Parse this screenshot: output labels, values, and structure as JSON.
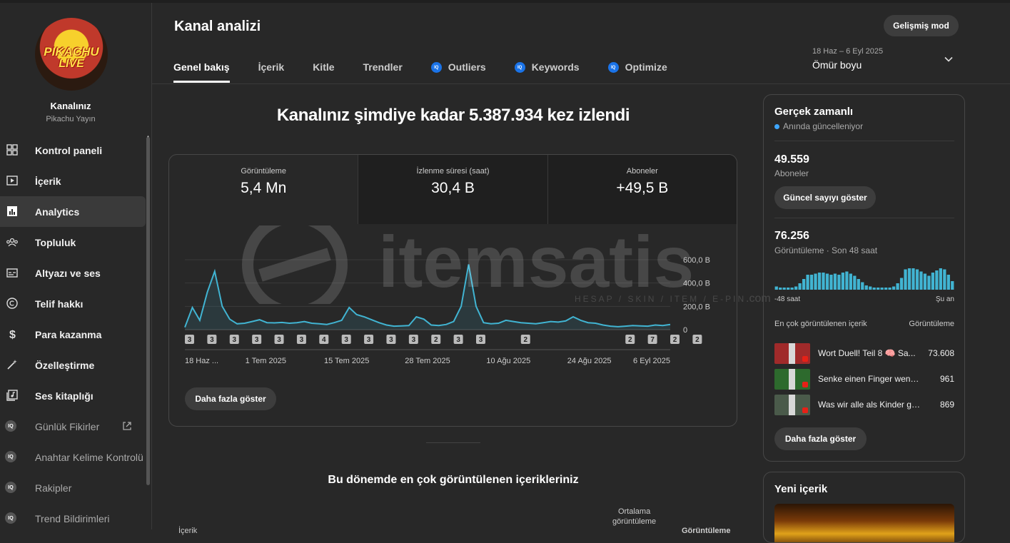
{
  "channel": {
    "title": "Kanalınız",
    "name": "Pikachu Yayın",
    "logo_top": "PIKACHU",
    "logo_bottom": "LIVE"
  },
  "nav": [
    {
      "label": "Kontrol paneli",
      "icon": "dashboard-icon"
    },
    {
      "label": "İçerik",
      "icon": "content-icon"
    },
    {
      "label": "Analytics",
      "icon": "analytics-icon",
      "active": true
    },
    {
      "label": "Topluluk",
      "icon": "community-icon"
    },
    {
      "label": "Altyazı ve ses",
      "icon": "subtitles-icon"
    },
    {
      "label": "Telif hakkı",
      "icon": "copyright-icon"
    },
    {
      "label": "Para kazanma",
      "icon": "dollar-icon"
    },
    {
      "label": "Özelleştirme",
      "icon": "magic-wand-icon"
    },
    {
      "label": "Ses kitaplığı",
      "icon": "audio-library-icon"
    },
    {
      "label": "Günlük Fikirler",
      "icon": "iq-icon",
      "external": true
    },
    {
      "label": "Anahtar Kelime Kontrolü",
      "icon": "iq-icon"
    },
    {
      "label": "Rakipler",
      "icon": "iq-icon"
    },
    {
      "label": "Trend Bildirimleri",
      "icon": "iq-icon"
    }
  ],
  "iq_badge": "IQ",
  "header": {
    "title": "Kanal analizi",
    "advanced_mode": "Gelişmiş mod",
    "date_range": "18 Haz – 6 Eyl 2025",
    "date_value": "Ömür boyu"
  },
  "tabs": [
    {
      "label": "Genel bakış",
      "active": true
    },
    {
      "label": "İçerik"
    },
    {
      "label": "Kitle"
    },
    {
      "label": "Trendler"
    },
    {
      "label": "Outliers",
      "iq": true
    },
    {
      "label": "Keywords",
      "iq": true
    },
    {
      "label": "Optimize",
      "iq": true
    }
  ],
  "main": {
    "headline": "Kanalınız şimdiye kadar 5.387.934 kez izlendi",
    "metrics": [
      {
        "label": "Görüntüleme",
        "value": "5,4 Mn"
      },
      {
        "label": "İzlenme süresi (saat)",
        "value": "30,4 B"
      },
      {
        "label": "Aboneler",
        "value": "+49,5 B"
      }
    ],
    "more_button": "Daha fazla göster",
    "section_title": "Bu dönemde en çok görüntülenen içerikleriniz",
    "table_header_first": "İçerik",
    "table_header_avg_line1": "Ortalama",
    "table_header_avg_line2": "görüntüleme",
    "table_header_views": "Görüntüleme"
  },
  "chart_data": {
    "type": "line",
    "series": [
      {
        "values": [
          20,
          190,
          80,
          320,
          500,
          200,
          90,
          50,
          55,
          70,
          85,
          60,
          58,
          62,
          55,
          60,
          70,
          55,
          50,
          45,
          60,
          80,
          190,
          130,
          110,
          85,
          60,
          40,
          30,
          32,
          35,
          110,
          90,
          40,
          35,
          45,
          70,
          200,
          560,
          200,
          60,
          50,
          55,
          80,
          70,
          60,
          55,
          50,
          60,
          70,
          65,
          75,
          110,
          80,
          60,
          55,
          40,
          30,
          25,
          30,
          35,
          32,
          30,
          40,
          35,
          45
        ]
      }
    ],
    "y_ticks": [
      "0",
      "200,0 B",
      "400,0 B",
      "600,0 B"
    ],
    "ylim": [
      0,
      600
    ],
    "x_ticks": [
      "18 Haz ...",
      "1 Tem 2025",
      "15 Tem 2025",
      "28 Tem 2025",
      "10 Ağu 2025",
      "24 Ağu 2025",
      "6 Eyl 2025"
    ],
    "markers": [
      {
        "label": "3",
        "x": 0
      },
      {
        "label": "3",
        "x": 3
      },
      {
        "label": "3",
        "x": 6
      },
      {
        "label": "3",
        "x": 9
      },
      {
        "label": "3",
        "x": 12
      },
      {
        "label": "3",
        "x": 15
      },
      {
        "label": "4",
        "x": 18
      },
      {
        "label": "3",
        "x": 21
      },
      {
        "label": "3",
        "x": 24
      },
      {
        "label": "3",
        "x": 27
      },
      {
        "label": "3",
        "x": 30
      },
      {
        "label": "2",
        "x": 33
      },
      {
        "label": "3",
        "x": 36
      },
      {
        "label": "3",
        "x": 39
      },
      {
        "label": "2",
        "x": 45
      },
      {
        "label": "2",
        "x": 59
      },
      {
        "label": "7",
        "x": 62
      },
      {
        "label": "2",
        "x": 65
      },
      {
        "label": "2",
        "x": 68
      },
      {
        "label": "2",
        "x": 75
      }
    ],
    "color": "#41b4d2"
  },
  "watermark": {
    "text": "itemsatis",
    "subtext": "HESAP / SKIN / ITEM / E-PIN",
    "suffix": ".com"
  },
  "realtime": {
    "title": "Gerçek zamanlı",
    "status": "Anında güncelleniyor",
    "subscribers_value": "49.559",
    "subscribers_label": "Aboneler",
    "show_count_button": "Güncel sayıyı göster",
    "views_value": "76.256",
    "views_label": "Görüntüleme · Son 48 saat",
    "bars": [
      3,
      2,
      2,
      2,
      2,
      3,
      6,
      10,
      14,
      14,
      15,
      16,
      16,
      15,
      14,
      15,
      14,
      16,
      17,
      15,
      13,
      10,
      7,
      4,
      3,
      2,
      2,
      2,
      2,
      2,
      3,
      6,
      11,
      19,
      20,
      20,
      19,
      17,
      15,
      13,
      16,
      18,
      20,
      19,
      14,
      8
    ],
    "axis_left": "-48 saat",
    "axis_right": "Şu an",
    "top_content_header": "En çok görüntülenen içerik",
    "top_content_views_header": "Görüntüleme",
    "top_content": [
      {
        "title": "Wort Duell! Teil 8 🧠 Sa...",
        "views": "73.608",
        "thumb": "#a02a2a"
      },
      {
        "title": "Senke einen Finger wenn d...",
        "views": "961",
        "thumb": "#2d6a2d"
      },
      {
        "title": "Was wir alle als Kinder ge...",
        "views": "869",
        "thumb": "#4a5a4a"
      }
    ],
    "more_button": "Daha fazla göster"
  },
  "new_content": {
    "title": "Yeni içerik"
  }
}
